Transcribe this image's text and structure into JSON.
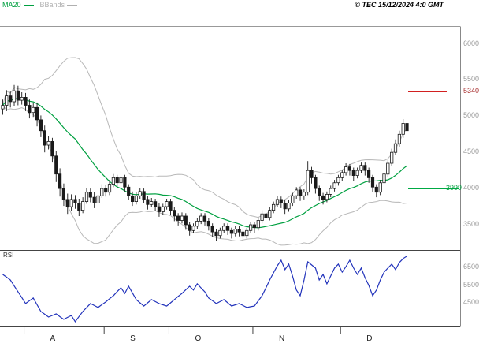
{
  "header": {
    "legend": [
      {
        "label": "MA20",
        "color": "#00a040"
      },
      {
        "label": "BBands",
        "color": "#b0b0b0"
      }
    ],
    "copyright": "© TEC 15/12/2024 4:0 GMT"
  },
  "chart_data": {
    "type": "candlestick",
    "title": "",
    "price_axis": {
      "side": "right",
      "ticks": [
        6000,
        5500,
        5000,
        4500,
        4000,
        3500
      ],
      "ylim": [
        3250,
        6250
      ]
    },
    "levels": [
      {
        "label": "5340",
        "value": 5340,
        "role": "resistance",
        "line_color": "#cc0000",
        "text_color": "#aa3333"
      },
      {
        "label": "3999",
        "value": 3999,
        "role": "support",
        "line_color": "#00aa44",
        "text_color": "#00a040"
      }
    ],
    "months": [
      {
        "label": "A",
        "start_day": 6
      },
      {
        "label": "S",
        "start_day": 27
      },
      {
        "label": "O",
        "start_day": 44
      },
      {
        "label": "N",
        "start_day": 66
      },
      {
        "label": "D",
        "start_day": 89
      }
    ],
    "indicators": {
      "ma_period": 20,
      "bb_period": 20,
      "bb_stddev": 2,
      "ma_color": "#00a040",
      "bb_color": "#b8b8b8"
    },
    "candle_up_fill": "#ffffff",
    "candle_down_fill": "#1a1a1a",
    "candle_stroke": "#1a1a1a",
    "series": {
      "open": [
        5100,
        5150,
        5280,
        5200,
        5350,
        5220,
        5260,
        5150,
        5050,
        5120,
        4950,
        4800,
        4600,
        4650,
        4450,
        4200,
        4000,
        3850,
        3750,
        3850,
        3800,
        3700,
        3820,
        3950,
        3880,
        3800,
        3900,
        4000,
        3950,
        4060,
        4150,
        4080,
        4150,
        4020,
        3900,
        3820,
        3900,
        3960,
        3850,
        3780,
        3820,
        3750,
        3680,
        3750,
        3820,
        3700,
        3620,
        3560,
        3620,
        3500,
        3420,
        3480,
        3550,
        3620,
        3550,
        3480,
        3400,
        3350,
        3420,
        3480,
        3420,
        3380,
        3440,
        3400,
        3350,
        3420,
        3500,
        3460,
        3560,
        3650,
        3600,
        3700,
        3780,
        3850,
        3800,
        3720,
        3800,
        3900,
        3980,
        3900,
        3950,
        4250,
        4150,
        4000,
        3900,
        3850,
        3920,
        4000,
        4080,
        4150,
        4220,
        4300,
        4250,
        4180,
        4250,
        4320,
        4250,
        4150,
        4020,
        3950,
        4080,
        4200,
        4350,
        4500,
        4620,
        4750,
        4900
      ],
      "high": [
        5230,
        5360,
        5340,
        5430,
        5420,
        5330,
        5320,
        5230,
        5180,
        5190,
        5010,
        4870,
        4720,
        4700,
        4520,
        4280,
        4070,
        3930,
        3920,
        3910,
        3860,
        3880,
        4010,
        4000,
        3950,
        3960,
        4060,
        4050,
        4120,
        4200,
        4190,
        4210,
        4190,
        4060,
        3960,
        3950,
        4010,
        4000,
        3900,
        3870,
        3860,
        3800,
        3790,
        3860,
        3860,
        3740,
        3660,
        3670,
        3660,
        3540,
        3520,
        3590,
        3660,
        3660,
        3590,
        3520,
        3440,
        3460,
        3520,
        3520,
        3460,
        3480,
        3480,
        3440,
        3460,
        3540,
        3540,
        3600,
        3700,
        3690,
        3740,
        3820,
        3900,
        3890,
        3840,
        3840,
        3940,
        4020,
        4020,
        3990,
        4380,
        4300,
        4190,
        4040,
        3940,
        3960,
        4040,
        4120,
        4190,
        4260,
        4350,
        4340,
        4290,
        4290,
        4360,
        4360,
        4290,
        4190,
        4060,
        4120,
        4250,
        4400,
        4550,
        4680,
        4800,
        4960,
        4950
      ],
      "low": [
        5020,
        5070,
        5120,
        5140,
        5150,
        5160,
        5070,
        4970,
        4990,
        4860,
        4710,
        4500,
        4540,
        4360,
        4090,
        3890,
        3760,
        3650,
        3690,
        3720,
        3620,
        3660,
        3790,
        3810,
        3730,
        3760,
        3870,
        3890,
        3910,
        4020,
        4020,
        4040,
        3960,
        3840,
        3760,
        3780,
        3860,
        3800,
        3710,
        3740,
        3690,
        3610,
        3640,
        3710,
        3640,
        3550,
        3490,
        3520,
        3430,
        3350,
        3380,
        3440,
        3510,
        3490,
        3420,
        3330,
        3280,
        3310,
        3380,
        3360,
        3310,
        3340,
        3340,
        3280,
        3310,
        3390,
        3390,
        3420,
        3520,
        3530,
        3560,
        3660,
        3740,
        3730,
        3650,
        3680,
        3760,
        3860,
        3830,
        3850,
        3910,
        4070,
        3930,
        3830,
        3780,
        3810,
        3880,
        3960,
        4040,
        4110,
        4180,
        4180,
        4110,
        4140,
        4210,
        4180,
        4080,
        3950,
        3880,
        3910,
        4040,
        4160,
        4310,
        4460,
        4580,
        4700,
        4710
      ],
      "close": [
        5150,
        5280,
        5200,
        5350,
        5220,
        5260,
        5150,
        5050,
        5120,
        4950,
        4800,
        4600,
        4650,
        4450,
        4200,
        4000,
        3850,
        3750,
        3850,
        3800,
        3700,
        3820,
        3950,
        3880,
        3800,
        3900,
        4000,
        3950,
        4060,
        4150,
        4080,
        4150,
        4020,
        3900,
        3820,
        3900,
        3960,
        3850,
        3780,
        3820,
        3750,
        3680,
        3750,
        3820,
        3700,
        3620,
        3560,
        3620,
        3500,
        3420,
        3480,
        3550,
        3620,
        3550,
        3480,
        3400,
        3350,
        3420,
        3480,
        3420,
        3380,
        3440,
        3400,
        3350,
        3420,
        3500,
        3460,
        3560,
        3650,
        3600,
        3700,
        3780,
        3850,
        3800,
        3720,
        3800,
        3900,
        3980,
        3900,
        3950,
        4250,
        4150,
        4000,
        3900,
        3850,
        3920,
        4000,
        4080,
        4150,
        4220,
        4300,
        4250,
        4180,
        4250,
        4320,
        4250,
        4150,
        4020,
        3950,
        4080,
        4200,
        4350,
        4500,
        4620,
        4750,
        4900,
        4800
      ]
    },
    "rsi": {
      "label": "RSI",
      "color": "#2233bb",
      "ticks": [
        6500,
        5500,
        4500
      ],
      "values": [
        6100,
        5950,
        5790,
        5450,
        5120,
        4800,
        4460,
        4620,
        4770,
        4390,
        4010,
        3860,
        3700,
        3790,
        3880,
        3720,
        3570,
        3680,
        3790,
        3440,
        3730,
        4010,
        4240,
        4460,
        4350,
        4240,
        4400,
        4550,
        4730,
        4900,
        5130,
        5350,
        5030,
        5440,
        5060,
        4680,
        4500,
        4320,
        4500,
        4680,
        4570,
        4460,
        4390,
        4320,
        4500,
        4680,
        4860,
        5030,
        5240,
        5440,
        5220,
        5570,
        5340,
        5120,
        4770,
        4620,
        4460,
        4570,
        4680,
        4500,
        4320,
        4390,
        4460,
        4350,
        4240,
        4280,
        4320,
        4610,
        4900,
        5340,
        5790,
        6190,
        6590,
        6900,
        6370,
        6680,
        6010,
        5220,
        4900,
        5790,
        6810,
        6640,
        6460,
        5790,
        6100,
        5570,
        6010,
        6460,
        6680,
        6230,
        6540,
        6900,
        6460,
        6100,
        6460,
        5920,
        5480,
        4900,
        5220,
        5790,
        6230,
        6460,
        6680,
        6370,
        6770,
        7000,
        7130
      ]
    }
  }
}
